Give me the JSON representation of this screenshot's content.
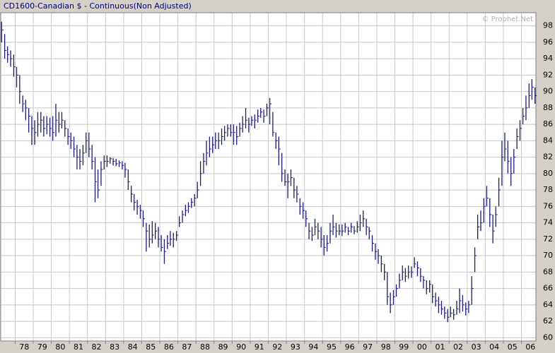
{
  "chart_data": {
    "type": "hlc",
    "title": "CD1600-Canadian $ - Continuous(Non Adjusted)",
    "watermark": "© Prophet.Net",
    "color": "#1c1c70",
    "grid": true,
    "y_axis_side": "right",
    "xlim": [
      1977.2,
      2006.8
    ],
    "ylim": [
      59.6,
      99.6
    ],
    "yticks": [
      60,
      62,
      64,
      66,
      68,
      70,
      72,
      74,
      76,
      78,
      80,
      82,
      84,
      86,
      88,
      90,
      92,
      94,
      96,
      98
    ],
    "xticks": [
      {
        "value": 1978,
        "label": "78"
      },
      {
        "value": 1979,
        "label": "79"
      },
      {
        "value": 1980,
        "label": "80"
      },
      {
        "value": 1981,
        "label": "81"
      },
      {
        "value": 1982,
        "label": "82"
      },
      {
        "value": 1983,
        "label": "83"
      },
      {
        "value": 1984,
        "label": "84"
      },
      {
        "value": 1985,
        "label": "85"
      },
      {
        "value": 1986,
        "label": "86"
      },
      {
        "value": 1987,
        "label": "87"
      },
      {
        "value": 1988,
        "label": "88"
      },
      {
        "value": 1989,
        "label": "89"
      },
      {
        "value": 1990,
        "label": "90"
      },
      {
        "value": 1991,
        "label": "91"
      },
      {
        "value": 1992,
        "label": "92"
      },
      {
        "value": 1993,
        "label": "93"
      },
      {
        "value": 1994,
        "label": "94"
      },
      {
        "value": 1995,
        "label": "95"
      },
      {
        "value": 1996,
        "label": "96"
      },
      {
        "value": 1997,
        "label": "97"
      },
      {
        "value": 1998,
        "label": "98"
      },
      {
        "value": 1999,
        "label": "99"
      },
      {
        "value": 2000,
        "label": "00"
      },
      {
        "value": 2001,
        "label": "01"
      },
      {
        "value": 2002,
        "label": "02"
      },
      {
        "value": 2003,
        "label": "03"
      },
      {
        "value": 2004,
        "label": "04"
      },
      {
        "value": 2005,
        "label": "05"
      },
      {
        "value": 2006,
        "label": "06"
      }
    ],
    "x": [
      1977.25,
      1977.42,
      1977.58,
      1977.75,
      1977.92,
      1978.08,
      1978.25,
      1978.42,
      1978.58,
      1978.75,
      1978.92,
      1979.08,
      1979.25,
      1979.42,
      1979.58,
      1979.75,
      1979.92,
      1980.08,
      1980.25,
      1980.42,
      1980.58,
      1980.75,
      1980.92,
      1981.08,
      1981.25,
      1981.42,
      1981.58,
      1981.75,
      1981.92,
      1982.08,
      1982.25,
      1982.42,
      1982.58,
      1982.75,
      1982.92,
      1983.08,
      1983.25,
      1983.42,
      1983.58,
      1983.75,
      1983.92,
      1984.08,
      1984.25,
      1984.42,
      1984.58,
      1984.75,
      1984.92,
      1985.08,
      1985.25,
      1985.42,
      1985.58,
      1985.75,
      1985.92,
      1986.08,
      1986.25,
      1986.42,
      1986.58,
      1986.75,
      1986.92,
      1987.08,
      1987.25,
      1987.42,
      1987.58,
      1987.75,
      1987.92,
      1988.08,
      1988.25,
      1988.42,
      1988.58,
      1988.75,
      1988.92,
      1989.08,
      1989.25,
      1989.42,
      1989.58,
      1989.75,
      1989.92,
      1990.08,
      1990.25,
      1990.42,
      1990.58,
      1990.75,
      1990.92,
      1991.08,
      1991.25,
      1991.42,
      1991.58,
      1991.75,
      1991.92,
      1992.08,
      1992.25,
      1992.42,
      1992.58,
      1992.75,
      1992.92,
      1993.08,
      1993.25,
      1993.42,
      1993.58,
      1993.75,
      1993.92,
      1994.08,
      1994.25,
      1994.42,
      1994.58,
      1994.75,
      1994.92,
      1995.08,
      1995.25,
      1995.42,
      1995.58,
      1995.75,
      1995.92,
      1996.08,
      1996.25,
      1996.42,
      1996.58,
      1996.75,
      1996.92,
      1997.08,
      1997.25,
      1997.42,
      1997.58,
      1997.75,
      1997.92,
      1998.08,
      1998.25,
      1998.42,
      1998.58,
      1998.75,
      1998.92,
      1999.08,
      1999.25,
      1999.42,
      1999.58,
      1999.75,
      1999.92,
      2000.08,
      2000.25,
      2000.42,
      2000.58,
      2000.75,
      2000.92,
      2001.08,
      2001.25,
      2001.42,
      2001.58,
      2001.75,
      2001.92,
      2002.08,
      2002.25,
      2002.42,
      2002.58,
      2002.75,
      2002.92,
      2003.08,
      2003.25,
      2003.42,
      2003.58,
      2003.75,
      2003.92,
      2004.08,
      2004.25,
      2004.42,
      2004.58,
      2004.75,
      2004.92,
      2005.08,
      2005.25,
      2005.42,
      2005.58,
      2005.75,
      2005.92,
      2006.08,
      2006.25,
      2006.42,
      2006.58,
      2006.75
    ],
    "high": [
      98.5,
      97,
      95.5,
      95,
      94.5,
      93,
      92,
      89.5,
      89,
      88,
      87,
      86.5,
      87.5,
      87.5,
      87,
      87,
      86.8,
      87,
      88.5,
      87.5,
      87.5,
      86.5,
      85.5,
      85,
      84.5,
      83.5,
      83,
      83.5,
      85,
      85,
      83.5,
      82,
      80.5,
      81.5,
      82.2,
      82.2,
      82,
      81.9,
      81.8,
      81.6,
      81.5,
      81.3,
      80.5,
      78.5,
      77.5,
      76.8,
      76.2,
      75.5,
      74,
      73.8,
      74.2,
      74,
      73.5,
      72.5,
      72,
      72.5,
      73,
      72.8,
      73,
      74.8,
      75.5,
      76.2,
      76.5,
      77,
      77.5,
      79,
      81.5,
      82.5,
      84,
      84.5,
      84.5,
      85,
      85,
      85.5,
      85.8,
      86,
      86,
      86,
      85.8,
      86.2,
      87,
      88,
      86.8,
      87,
      87.2,
      87.8,
      88,
      87.8,
      88.5,
      89.2,
      87.5,
      85,
      84.5,
      82.5,
      80.5,
      80,
      80.5,
      79.5,
      78.5,
      77,
      76.5,
      75.5,
      74,
      73.5,
      74.5,
      74,
      73.5,
      72.5,
      72.5,
      74,
      75,
      74,
      73.8,
      73.8,
      74,
      73.5,
      74,
      73.6,
      74.2,
      75,
      75.5,
      74.5,
      73.5,
      72.5,
      71.5,
      70.8,
      70,
      69,
      68,
      65.5,
      65.8,
      66.5,
      67.8,
      68.8,
      68.5,
      68.8,
      68.7,
      69.8,
      69.3,
      68.5,
      67.5,
      67,
      67,
      66.5,
      65.5,
      65,
      64.5,
      63.8,
      63.5,
      63.8,
      63.5,
      64.5,
      66,
      65.2,
      64.3,
      64.5,
      67.5,
      71,
      75,
      75.5,
      77,
      78.5,
      77,
      75,
      76,
      79.5,
      84,
      85,
      84,
      82,
      83,
      85.5,
      86.5,
      88,
      89.5,
      91,
      91.5,
      90.5
    ],
    "low": [
      96,
      94,
      93.5,
      93,
      91.8,
      90.5,
      88.5,
      87.5,
      86.5,
      85,
      83.5,
      83.5,
      84.5,
      85,
      84.5,
      84.8,
      84.5,
      84,
      84.5,
      85,
      85.5,
      84.5,
      83.5,
      83,
      82,
      80.5,
      80.5,
      81,
      82.5,
      82,
      80.5,
      76.5,
      77,
      78.5,
      80.5,
      80.8,
      81.2,
      81,
      80.9,
      80.8,
      80.5,
      79.5,
      78,
      76.5,
      75.5,
      75,
      74.5,
      73.5,
      70.5,
      71,
      71.5,
      72,
      71,
      70.5,
      69,
      70.8,
      71.2,
      71,
      71.8,
      73.5,
      74,
      74.8,
      75.2,
      75.8,
      76,
      77,
      78.5,
      80,
      81,
      82,
      82.5,
      83,
      83,
      83.5,
      84,
      84.5,
      84.5,
      83.5,
      83.5,
      84.5,
      85,
      85.5,
      85,
      85.8,
      85.5,
      86.2,
      86.8,
      86.2,
      87,
      86,
      84.5,
      83,
      81,
      79,
      78.5,
      77,
      78.5,
      77,
      76.5,
      75,
      74.5,
      73.5,
      72,
      71.8,
      72.5,
      72,
      71,
      70,
      70.5,
      71.5,
      72.5,
      72.2,
      72.5,
      72.4,
      72.8,
      72.5,
      72.8,
      72.6,
      72.8,
      73,
      73.5,
      72.5,
      72,
      70.5,
      69.5,
      69,
      68,
      67,
      64,
      63,
      64,
      65,
      66,
      67,
      66.8,
      67.2,
      67.3,
      68.5,
      67.5,
      66.8,
      66,
      65.3,
      65.5,
      64.2,
      63.8,
      63,
      62.8,
      62.3,
      61.9,
      62.5,
      62.2,
      62.8,
      63,
      63.2,
      62.7,
      63,
      64,
      68,
      72,
      73,
      74,
      76,
      73.5,
      71.5,
      73.5,
      76,
      78.5,
      81.5,
      80,
      78.5,
      80,
      83,
      84,
      86,
      86.5,
      88,
      89,
      88.5
    ],
    "close": [
      97.5,
      95,
      94.5,
      94,
      93,
      92,
      90,
      88.5,
      88,
      87,
      85.5,
      85,
      86,
      86.5,
      85.5,
      86,
      85.5,
      85,
      86.5,
      86,
      86.5,
      85.5,
      84.5,
      84,
      83,
      82,
      81.5,
      82.5,
      84,
      83,
      81.5,
      79,
      78,
      80.5,
      81.5,
      81.5,
      81.8,
      81.5,
      81.2,
      81.3,
      81,
      80.5,
      79,
      77.5,
      76.5,
      76,
      75.5,
      74.5,
      73,
      72,
      72.5,
      73,
      72,
      71,
      70.5,
      71.5,
      72,
      72,
      72.5,
      74,
      75,
      75.5,
      76,
      76.5,
      77,
      78,
      80,
      81.5,
      82.5,
      83,
      83.5,
      84,
      84,
      84.5,
      85,
      85.5,
      85,
      85,
      84.5,
      85.5,
      86,
      86.5,
      86,
      86.5,
      86.5,
      87,
      87.5,
      87,
      88,
      88.5,
      85,
      84,
      83,
      80,
      79,
      79,
      79.5,
      78,
      77.5,
      76,
      75.5,
      74.5,
      73,
      72.5,
      73.5,
      73,
      72,
      71,
      71.5,
      73,
      73.5,
      73,
      73,
      73,
      73.5,
      73,
      73.5,
      73,
      73.5,
      74,
      74.5,
      73.5,
      73,
      71.5,
      70.5,
      70,
      69,
      68,
      65,
      64,
      65,
      66,
      67,
      68,
      67.5,
      68,
      68,
      69,
      68.5,
      67.5,
      67,
      66,
      66.5,
      65,
      64.5,
      64,
      63.5,
      63,
      62.5,
      63,
      62.8,
      63.5,
      64.5,
      64,
      63.5,
      64,
      66,
      70,
      73.5,
      74,
      76,
      77,
      75,
      73,
      75,
      78,
      82,
      83,
      81.5,
      80,
      82,
      84.5,
      85.5,
      87,
      88,
      89.5,
      90.5,
      89.5
    ]
  }
}
